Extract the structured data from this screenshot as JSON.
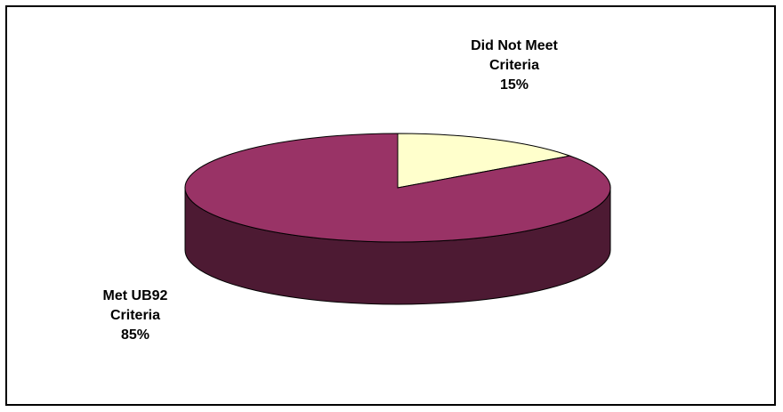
{
  "chart_data": {
    "type": "pie",
    "style": "3d",
    "title": "",
    "slices": [
      {
        "name": "Did Not Meet Criteria",
        "label_lines": [
          "Did Not Meet",
          "Criteria",
          "15%"
        ],
        "value": 15,
        "color": "#FFFFCC",
        "side_color": "#CCCC99"
      },
      {
        "name": "Met UB92 Criteria",
        "label_lines": [
          "Met UB92",
          "Criteria",
          "85%"
        ],
        "value": 85,
        "color": "#993366",
        "side_color": "#4D1A33"
      }
    ],
    "legend": "none",
    "data_labels": "outside"
  }
}
